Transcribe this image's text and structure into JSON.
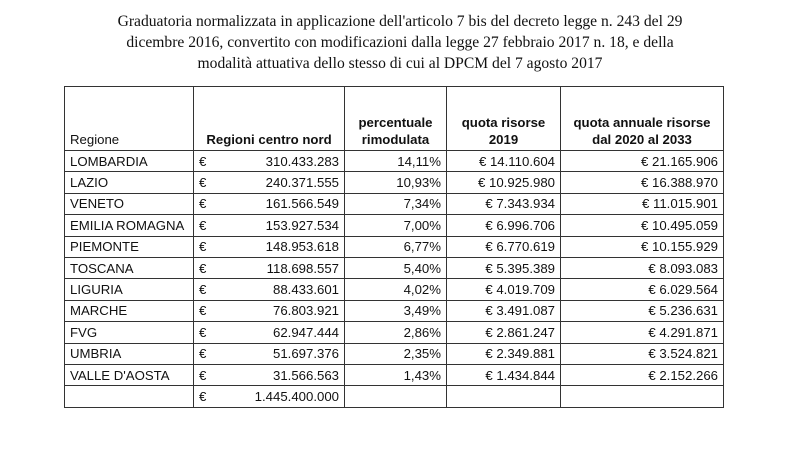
{
  "title": "Graduatoria normalizzata in applicazione dell'articolo 7 bis del decreto legge n. 243 del 29 dicembre 2016, convertito con modificazioni dalla legge 27 febbraio 2017 n. 18, e della modalità attuativa dello stesso di cui al DPCM del 7 agosto 2017",
  "title_lines": [
    "Graduatoria normalizzata in applicazione dell'articolo 7 bis del decreto legge n. 243 del 29",
    "dicembre 2016, convertito con modificazioni dalla legge 27 febbraio 2017 n. 18, e della",
    "modalità attuativa dello stesso di cui al DPCM del 7 agosto 2017"
  ],
  "headers": [
    "Regione",
    "Regioni centro nord",
    "percentuale rimodulata",
    "quota risorse 2019",
    "quota annuale risorse dal 2020 al 2033"
  ],
  "currency": "€",
  "rows": [
    {
      "regione": "LOMBARDIA",
      "importo": "310.433.283",
      "perc": "14,11%",
      "q2019": "€ 14.110.604",
      "qannua": "€ 21.165.906"
    },
    {
      "regione": "LAZIO",
      "importo": "240.371.555",
      "perc": "10,93%",
      "q2019": "€ 10.925.980",
      "qannua": "€ 16.388.970"
    },
    {
      "regione": "VENETO",
      "importo": "161.566.549",
      "perc": "7,34%",
      "q2019": "€ 7.343.934",
      "qannua": "€ 11.015.901"
    },
    {
      "regione": "EMILIA ROMAGNA",
      "importo": "153.927.534",
      "perc": "7,00%",
      "q2019": "€ 6.996.706",
      "qannua": "€ 10.495.059"
    },
    {
      "regione": "PIEMONTE",
      "importo": "148.953.618",
      "perc": "6,77%",
      "q2019": "€ 6.770.619",
      "qannua": "€ 10.155.929"
    },
    {
      "regione": "TOSCANA",
      "importo": "118.698.557",
      "perc": "5,40%",
      "q2019": "€ 5.395.389",
      "qannua": "€ 8.093.083"
    },
    {
      "regione": "LIGURIA",
      "importo": "88.433.601",
      "perc": "4,02%",
      "q2019": "€ 4.019.709",
      "qannua": "€ 6.029.564"
    },
    {
      "regione": "MARCHE",
      "importo": "76.803.921",
      "perc": "3,49%",
      "q2019": "€ 3.491.087",
      "qannua": "€ 5.236.631"
    },
    {
      "regione": "FVG",
      "importo": "62.947.444",
      "perc": "2,86%",
      "q2019": "€ 2.861.247",
      "qannua": "€ 4.291.871"
    },
    {
      "regione": "UMBRIA",
      "importo": "51.697.376",
      "perc": "2,35%",
      "q2019": "€ 2.349.881",
      "qannua": "€ 3.524.821"
    },
    {
      "regione": "VALLE D'AOSTA",
      "importo": "31.566.563",
      "perc": "1,43%",
      "q2019": "€ 1.434.844",
      "qannua": "€ 2.152.266"
    }
  ],
  "total": {
    "importo": "1.445.400.000"
  }
}
